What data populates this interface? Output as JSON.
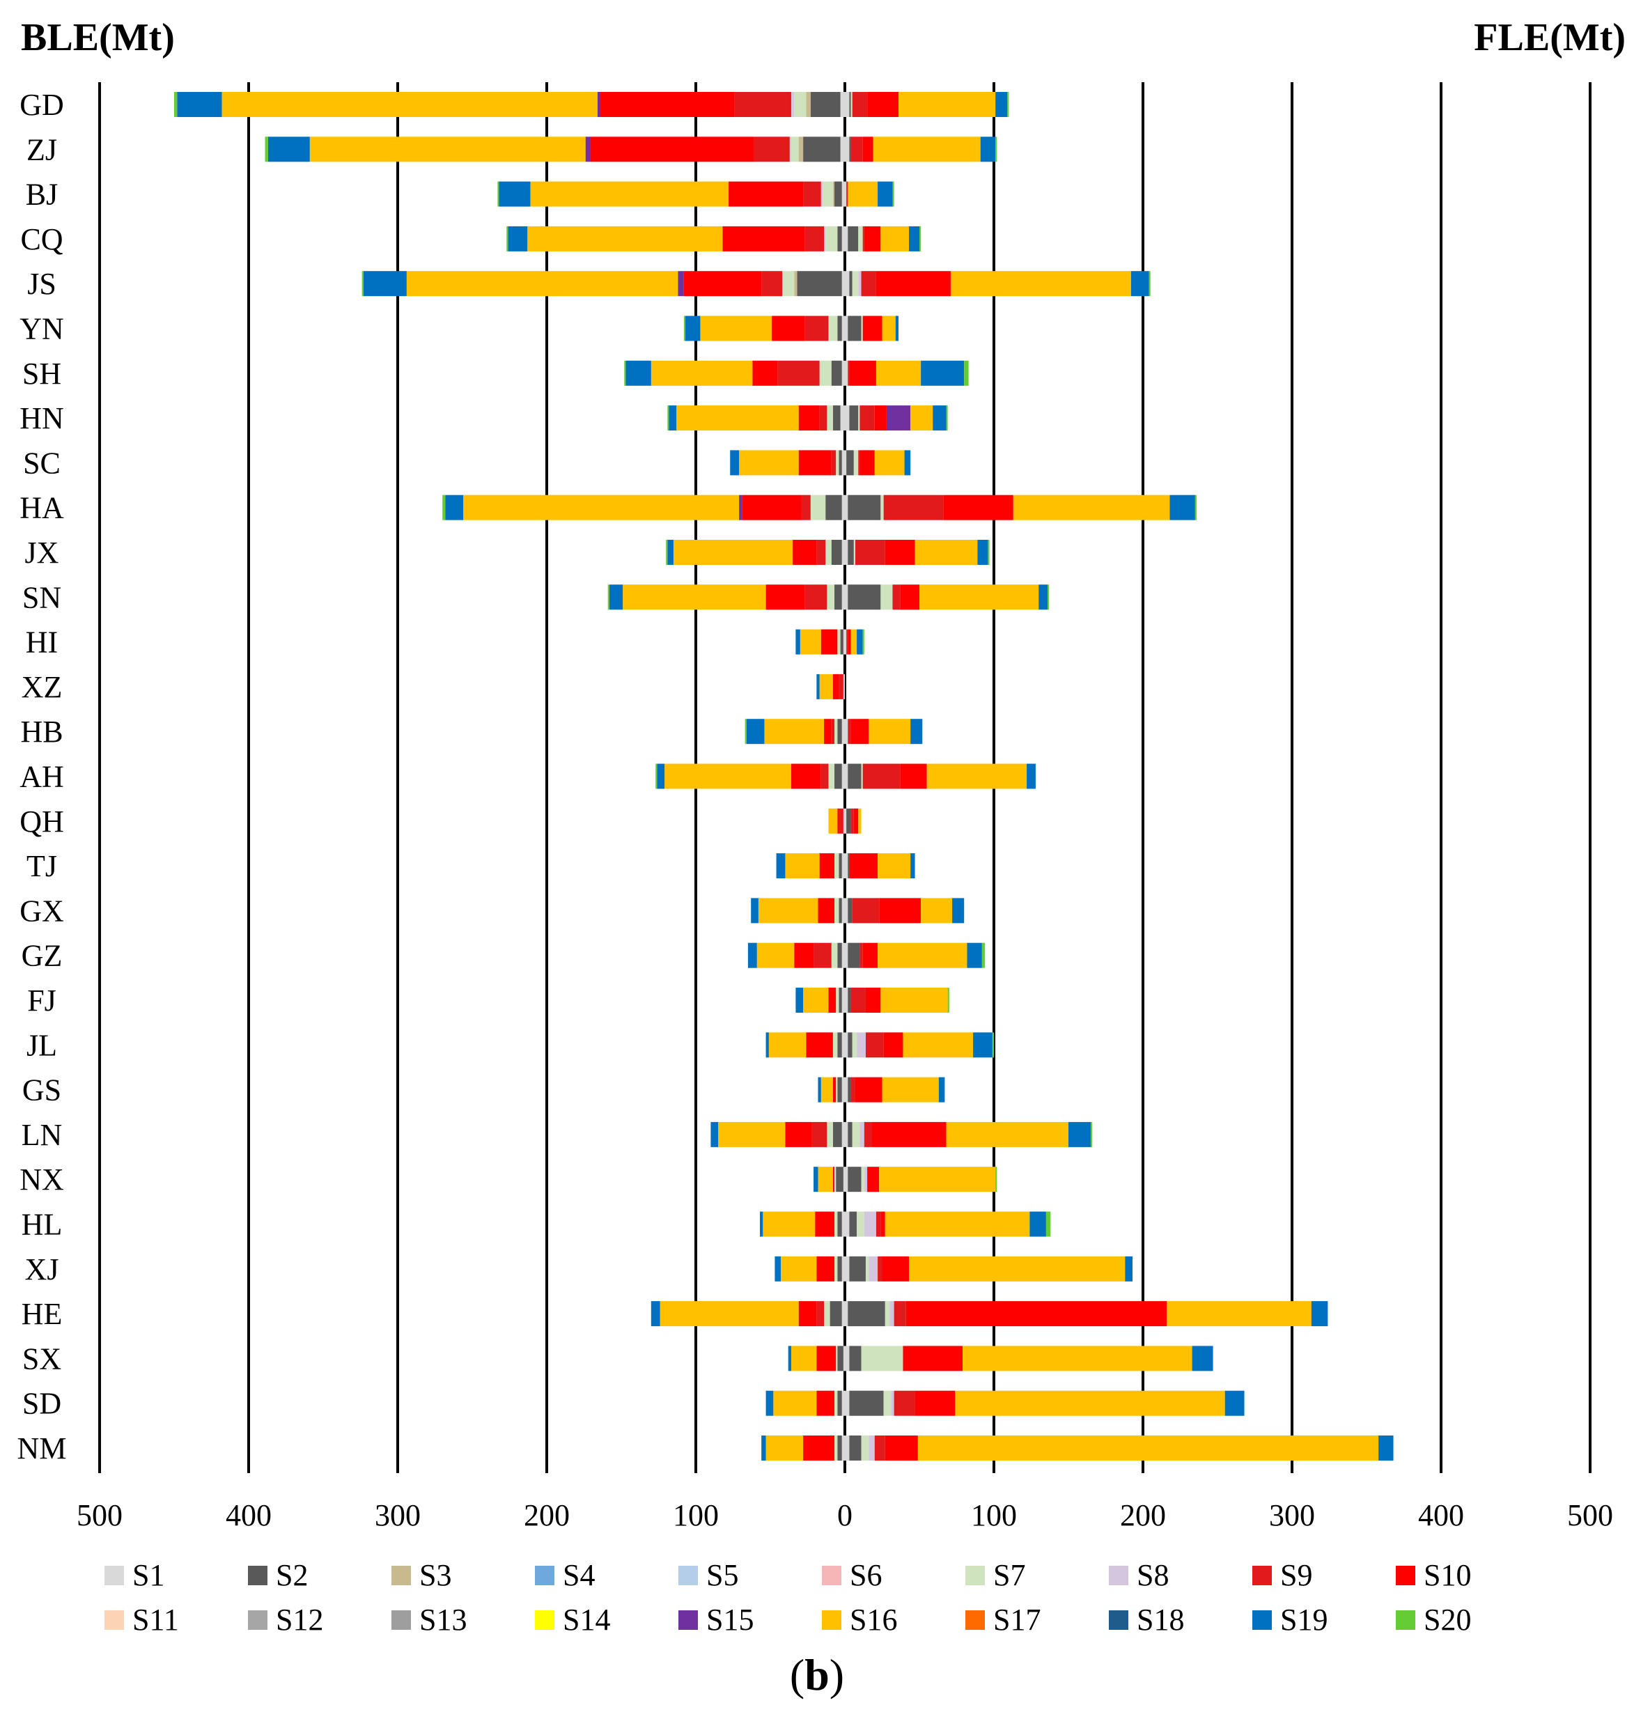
{
  "titles": {
    "left": "BLE(Mt)",
    "right": "FLE(Mt)",
    "panel": "b"
  },
  "chart_data": {
    "type": "bar",
    "orientation": "horizontal",
    "diverging": true,
    "xlabel": "",
    "ylabel": "",
    "xlim": [
      -500,
      500
    ],
    "x_ticks": [
      -500,
      -400,
      -300,
      -200,
      -100,
      0,
      100,
      200,
      300,
      400,
      500
    ],
    "x_tick_labels": [
      "500",
      "400",
      "300",
      "200",
      "100",
      "0",
      "100",
      "200",
      "300",
      "400",
      "500"
    ],
    "grid": "vertical",
    "legend_position": "bottom",
    "categories": [
      "GD",
      "ZJ",
      "BJ",
      "CQ",
      "JS",
      "YN",
      "SH",
      "HN",
      "SC",
      "HA",
      "JX",
      "SN",
      "HI",
      "XZ",
      "HB",
      "AH",
      "QH",
      "TJ",
      "GX",
      "GZ",
      "FJ",
      "JL",
      "GS",
      "LN",
      "NX",
      "HL",
      "XJ",
      "HE",
      "SX",
      "SD",
      "NM"
    ],
    "sectors": [
      {
        "name": "S1",
        "color": "#d9d9d9"
      },
      {
        "name": "S2",
        "color": "#595959"
      },
      {
        "name": "S3",
        "color": "#c9b98f"
      },
      {
        "name": "S4",
        "color": "#6fa8dc"
      },
      {
        "name": "S5",
        "color": "#b4cde8"
      },
      {
        "name": "S6",
        "color": "#f4b6b6"
      },
      {
        "name": "S7",
        "color": "#cfe3bf"
      },
      {
        "name": "S8",
        "color": "#d3c7e0"
      },
      {
        "name": "S9",
        "color": "#e31a1c"
      },
      {
        "name": "S10",
        "color": "#ff0000"
      },
      {
        "name": "S11",
        "color": "#fbd3b5"
      },
      {
        "name": "S12",
        "color": "#a6a6a6"
      },
      {
        "name": "S13",
        "color": "#9e9e9e"
      },
      {
        "name": "S14",
        "color": "#ffff00"
      },
      {
        "name": "S15",
        "color": "#7030a0"
      },
      {
        "name": "S16",
        "color": "#ffc000"
      },
      {
        "name": "S17",
        "color": "#ff6a00"
      },
      {
        "name": "S18",
        "color": "#1f5c8b"
      },
      {
        "name": "S19",
        "color": "#0070c0"
      },
      {
        "name": "S20",
        "color": "#66cc33"
      }
    ],
    "series_order": [
      "S1",
      "S2",
      "S3",
      "S7",
      "S8",
      "S9",
      "S10",
      "S15",
      "S16",
      "S19",
      "S20"
    ],
    "ble": {
      "GD": {
        "S1": 3,
        "S2": 20,
        "S3": 3,
        "S7": 8,
        "S8": 2,
        "S9": 38,
        "S10": 90,
        "S15": 2,
        "S16": 252,
        "S19": 30,
        "S20": 2
      },
      "ZJ": {
        "S1": 3,
        "S2": 25,
        "S3": 3,
        "S7": 5,
        "S8": 1,
        "S9": 24,
        "S10": 110,
        "S15": 3,
        "S16": 185,
        "S19": 28,
        "S20": 2
      },
      "BJ": {
        "S1": 2,
        "S2": 5,
        "S3": 1,
        "S7": 7,
        "S8": 1,
        "S9": 12,
        "S10": 50,
        "S16": 133,
        "S19": 21,
        "S20": 1
      },
      "CQ": {
        "S1": 2,
        "S2": 3,
        "S7": 8,
        "S8": 1,
        "S9": 13,
        "S10": 55,
        "S16": 131,
        "S19": 13,
        "S20": 1
      },
      "JS": {
        "S1": 2,
        "S2": 30,
        "S3": 2,
        "S7": 8,
        "S9": 14,
        "S10": 52,
        "S15": 4,
        "S16": 182,
        "S19": 29,
        "S20": 1
      },
      "YN": {
        "S1": 2,
        "S2": 3,
        "S7": 6,
        "S9": 16,
        "S10": 22,
        "S16": 48,
        "S19": 10,
        "S20": 1
      },
      "SH": {
        "S1": 2,
        "S2": 7,
        "S7": 8,
        "S9": 28,
        "S10": 17,
        "S16": 68,
        "S19": 17,
        "S20": 1
      },
      "HN": {
        "S1": 3,
        "S2": 5,
        "S7": 4,
        "S9": 5,
        "S10": 14,
        "S16": 82,
        "S19": 5,
        "S20": 1
      },
      "SC": {
        "S1": 2,
        "S2": 2,
        "S7": 2,
        "S9": 3,
        "S10": 22,
        "S16": 40,
        "S19": 6
      },
      "HA": {
        "S1": 2,
        "S2": 11,
        "S7": 10,
        "S9": 6,
        "S10": 40,
        "S15": 2,
        "S16": 185,
        "S19": 12,
        "S20": 2
      },
      "JX": {
        "S1": 2,
        "S2": 7,
        "S7": 4,
        "S9": 6,
        "S10": 16,
        "S16": 80,
        "S19": 4,
        "S20": 1
      },
      "SN": {
        "S1": 2,
        "S2": 5,
        "S7": 5,
        "S9": 15,
        "S10": 26,
        "S16": 96,
        "S19": 9,
        "S20": 1
      },
      "HI": {
        "S1": 1,
        "S2": 2,
        "S7": 2,
        "S10": 11,
        "S16": 14,
        "S19": 3
      },
      "XZ": {
        "S1": 1,
        "S9": 3,
        "S10": 4,
        "S16": 9,
        "S19": 2
      },
      "HB": {
        "S1": 2,
        "S2": 3,
        "S7": 2,
        "S9": 2,
        "S10": 5,
        "S16": 40,
        "S19": 12,
        "S20": 1
      },
      "AH": {
        "S1": 2,
        "S2": 5,
        "S7": 4,
        "S9": 5,
        "S10": 20,
        "S16": 85,
        "S19": 5,
        "S20": 1
      },
      "QH": {
        "S1": 1,
        "S9": 3,
        "S10": 1,
        "S16": 6
      },
      "TJ": {
        "S1": 2,
        "S2": 2,
        "S7": 3,
        "S10": 10,
        "S16": 23,
        "S19": 6
      },
      "GX": {
        "S1": 2,
        "S2": 2,
        "S7": 3,
        "S10": 11,
        "S16": 40,
        "S19": 5
      },
      "GZ": {
        "S1": 2,
        "S2": 3,
        "S7": 4,
        "S9": 12,
        "S10": 13,
        "S16": 25,
        "S19": 6
      },
      "FJ": {
        "S1": 2,
        "S2": 2,
        "S7": 2,
        "S10": 5,
        "S16": 17,
        "S19": 5
      },
      "JL": {
        "S1": 2,
        "S2": 3,
        "S7": 3,
        "S10": 18,
        "S16": 25,
        "S19": 2
      },
      "GS": {
        "S1": 2,
        "S2": 3,
        "S7": 1,
        "S10": 2,
        "S16": 8,
        "S19": 2
      },
      "LN": {
        "S1": 2,
        "S2": 6,
        "S7": 4,
        "S9": 10,
        "S10": 18,
        "S16": 45,
        "S19": 5
      },
      "NX": {
        "S1": 1,
        "S2": 5,
        "S7": 1,
        "S10": 1,
        "S16": 10,
        "S19": 3
      },
      "HL": {
        "S1": 2,
        "S2": 3,
        "S7": 2,
        "S10": 13,
        "S16": 35,
        "S19": 2
      },
      "XJ": {
        "S1": 2,
        "S2": 3,
        "S7": 2,
        "S10": 12,
        "S16": 24,
        "S19": 4
      },
      "HE": {
        "S1": 2,
        "S2": 8,
        "S7": 4,
        "S9": 5,
        "S10": 12,
        "S16": 93,
        "S19": 6
      },
      "SX": {
        "S1": 1,
        "S2": 4,
        "S7": 1,
        "S10": 13,
        "S16": 17,
        "S19": 2
      },
      "SD": {
        "S1": 2,
        "S2": 3,
        "S7": 2,
        "S10": 12,
        "S16": 29,
        "S19": 5
      },
      "NM": {
        "S1": 2,
        "S2": 3,
        "S7": 2,
        "S10": 21,
        "S16": 25,
        "S19": 3
      }
    },
    "fle": {
      "GD": {
        "S1": 3,
        "S2": 1,
        "S7": 1,
        "S9": 10,
        "S10": 21,
        "S16": 65,
        "S19": 8,
        "S20": 1
      },
      "ZJ": {
        "S1": 3,
        "S2": 1,
        "S9": 8,
        "S10": 7,
        "S16": 72,
        "S19": 10,
        "S20": 1
      },
      "BJ": {
        "S1": 1,
        "S9": 1,
        "S16": 20,
        "S19": 10,
        "S20": 1
      },
      "CQ": {
        "S1": 2,
        "S2": 7,
        "S7": 3,
        "S9": 1,
        "S10": 11,
        "S16": 19,
        "S19": 7,
        "S20": 1
      },
      "JS": {
        "S1": 3,
        "S2": 2,
        "S7": 4,
        "S8": 2,
        "S9": 10,
        "S10": 50,
        "S16": 121,
        "S19": 12,
        "S20": 1
      },
      "YN": {
        "S1": 2,
        "S2": 9,
        "S7": 1,
        "S10": 13,
        "S16": 9,
        "S19": 2
      },
      "SH": {
        "S1": 2,
        "S9": 1,
        "S10": 18,
        "S16": 30,
        "S19": 29,
        "S20": 3
      },
      "HN": {
        "S1": 3,
        "S2": 6,
        "S7": 1,
        "S9": 10,
        "S10": 8,
        "S15": 16,
        "S16": 15,
        "S19": 9,
        "S20": 1
      },
      "SC": {
        "S1": 1,
        "S2": 5,
        "S7": 3,
        "S9": 1,
        "S10": 10,
        "S16": 20,
        "S19": 4
      },
      "HA": {
        "S1": 2,
        "S2": 22,
        "S7": 2,
        "S9": 40,
        "S10": 47,
        "S16": 105,
        "S19": 17,
        "S20": 1
      },
      "JX": {
        "S1": 2,
        "S2": 4,
        "S7": 1,
        "S9": 20,
        "S10": 20,
        "S16": 42,
        "S19": 7,
        "S20": 1
      },
      "SN": {
        "S1": 2,
        "S2": 22,
        "S7": 8,
        "S9": 5,
        "S10": 13,
        "S16": 80,
        "S19": 6,
        "S20": 1
      },
      "HI": {
        "S1": 1,
        "S9": 1,
        "S10": 2,
        "S16": 4,
        "S19": 4,
        "S20": 1
      },
      "HB": {
        "S1": 2,
        "S9": 2,
        "S10": 12,
        "S16": 28,
        "S19": 8
      },
      "AH": {
        "S1": 2,
        "S2": 9,
        "S7": 1,
        "S9": 25,
        "S10": 18,
        "S16": 67,
        "S19": 6
      },
      "QH": {
        "S1": 1,
        "S2": 3,
        "S9": 2,
        "S10": 3,
        "S16": 2
      },
      "TJ": {
        "S1": 2,
        "S2": 1,
        "S10": 19,
        "S16": 22,
        "S19": 3
      },
      "GX": {
        "S1": 2,
        "S2": 3,
        "S9": 18,
        "S10": 28,
        "S16": 21,
        "S19": 8
      },
      "GZ": {
        "S1": 2,
        "S2": 8,
        "S9": 2,
        "S10": 10,
        "S16": 60,
        "S19": 10,
        "S20": 2
      },
      "FJ": {
        "S1": 2,
        "S2": 2,
        "S9": 10,
        "S10": 10,
        "S16": 45,
        "S20": 1
      },
      "JL": {
        "S1": 2,
        "S2": 3,
        "S7": 3,
        "S8": 6,
        "S9": 12,
        "S10": 13,
        "S16": 47,
        "S19": 13,
        "S20": 1
      },
      "GS": {
        "S1": 2,
        "S2": 2,
        "S9": 3,
        "S10": 18,
        "S16": 38,
        "S19": 4
      },
      "LN": {
        "S1": 2,
        "S2": 3,
        "S7": 5,
        "S8": 3,
        "S9": 5,
        "S10": 50,
        "S16": 82,
        "S19": 15,
        "S20": 1
      },
      "NX": {
        "S1": 2,
        "S2": 9,
        "S7": 2,
        "S8": 2,
        "S10": 8,
        "S16": 78,
        "S20": 1
      },
      "HL": {
        "S1": 3,
        "S2": 5,
        "S7": 5,
        "S8": 8,
        "S9": 3,
        "S10": 3,
        "S16": 97,
        "S19": 11,
        "S20": 3
      },
      "XJ": {
        "S1": 3,
        "S2": 11,
        "S7": 2,
        "S8": 6,
        "S9": 3,
        "S10": 18,
        "S16": 145,
        "S19": 5
      },
      "HE": {
        "S1": 2,
        "S2": 25,
        "S7": 3,
        "S8": 3,
        "S9": 8,
        "S10": 175,
        "S16": 97,
        "S19": 11
      },
      "SX": {
        "S1": 3,
        "S2": 8,
        "S7": 28,
        "S10": 40,
        "S16": 154,
        "S19": 14
      },
      "SD": {
        "S1": 3,
        "S2": 23,
        "S7": 5,
        "S8": 2,
        "S9": 14,
        "S10": 27,
        "S16": 181,
        "S19": 13
      },
      "NM": {
        "S1": 3,
        "S2": 8,
        "S7": 5,
        "S8": 4,
        "S9": 7,
        "S10": 22,
        "S16": 309,
        "S19": 10
      }
    }
  }
}
